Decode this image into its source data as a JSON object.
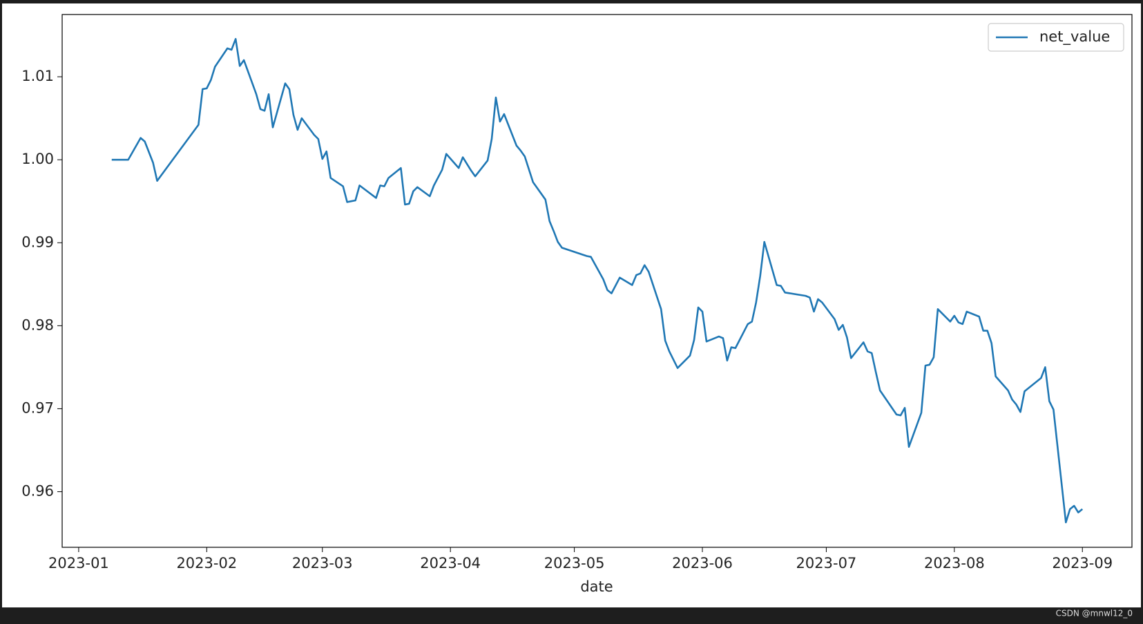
{
  "watermark": "CSDN @mnwl12_0",
  "chart_data": {
    "type": "line",
    "xlabel": "date",
    "x": [
      "2023-01-09",
      "2023-01-13",
      "2023-01-16",
      "2023-01-17",
      "2023-01-19",
      "2023-01-20",
      "2023-01-30",
      "2023-01-31",
      "2023-02-01",
      "2023-02-02",
      "2023-02-03",
      "2023-02-06",
      "2023-02-07",
      "2023-02-08",
      "2023-02-09",
      "2023-02-10",
      "2023-02-13",
      "2023-02-14",
      "2023-02-15",
      "2023-02-16",
      "2023-02-17",
      "2023-02-20",
      "2023-02-21",
      "2023-02-22",
      "2023-02-23",
      "2023-02-24",
      "2023-02-27",
      "2023-02-28",
      "2023-03-01",
      "2023-03-02",
      "2023-03-03",
      "2023-03-06",
      "2023-03-07",
      "2023-03-08",
      "2023-03-09",
      "2023-03-10",
      "2023-03-14",
      "2023-03-15",
      "2023-03-16",
      "2023-03-17",
      "2023-03-20",
      "2023-03-21",
      "2023-03-22",
      "2023-03-23",
      "2023-03-24",
      "2023-03-27",
      "2023-03-28",
      "2023-03-30",
      "2023-03-31",
      "2023-04-03",
      "2023-04-04",
      "2023-04-06",
      "2023-04-07",
      "2023-04-10",
      "2023-04-11",
      "2023-04-12",
      "2023-04-13",
      "2023-04-14",
      "2023-04-17",
      "2023-04-18",
      "2023-04-19",
      "2023-04-21",
      "2023-04-24",
      "2023-04-25",
      "2023-04-26",
      "2023-04-27",
      "2023-04-28",
      "2023-05-04",
      "2023-05-05",
      "2023-05-08",
      "2023-05-09",
      "2023-05-10",
      "2023-05-12",
      "2023-05-15",
      "2023-05-16",
      "2023-05-17",
      "2023-05-18",
      "2023-05-19",
      "2023-05-22",
      "2023-05-23",
      "2023-05-24",
      "2023-05-26",
      "2023-05-29",
      "2023-05-30",
      "2023-05-31",
      "2023-06-01",
      "2023-06-02",
      "2023-06-05",
      "2023-06-06",
      "2023-06-07",
      "2023-06-08",
      "2023-06-09",
      "2023-06-12",
      "2023-06-13",
      "2023-06-14",
      "2023-06-15",
      "2023-06-16",
      "2023-06-19",
      "2023-06-20",
      "2023-06-21",
      "2023-06-26",
      "2023-06-27",
      "2023-06-28",
      "2023-06-29",
      "2023-06-30",
      "2023-07-03",
      "2023-07-04",
      "2023-07-05",
      "2023-07-06",
      "2023-07-07",
      "2023-07-10",
      "2023-07-11",
      "2023-07-12",
      "2023-07-13",
      "2023-07-14",
      "2023-07-18",
      "2023-07-19",
      "2023-07-20",
      "2023-07-21",
      "2023-07-24",
      "2023-07-25",
      "2023-07-26",
      "2023-07-27",
      "2023-07-28",
      "2023-07-31",
      "2023-08-01",
      "2023-08-02",
      "2023-08-03",
      "2023-08-04",
      "2023-08-07",
      "2023-08-08",
      "2023-08-09",
      "2023-08-10",
      "2023-08-11",
      "2023-08-14",
      "2023-08-15",
      "2023-08-16",
      "2023-08-17",
      "2023-08-18",
      "2023-08-22",
      "2023-08-23",
      "2023-08-24",
      "2023-08-25",
      "2023-08-28",
      "2023-08-29",
      "2023-08-30",
      "2023-08-31",
      "2023-09-01"
    ],
    "series": [
      {
        "name": "net_value",
        "color": "#1f77b4",
        "values": [
          1.0,
          1.0,
          1.00263,
          1.0022,
          0.99965,
          0.99746,
          1.00421,
          1.00851,
          1.0086,
          1.0096,
          1.0112,
          1.01342,
          1.01325,
          1.01456,
          1.0113,
          1.012,
          1.0079,
          1.0061,
          1.0059,
          1.0079,
          1.0039,
          1.0092,
          1.0085,
          1.0054,
          1.0036,
          1.005,
          1.003,
          1.0025,
          1.0001,
          1.001,
          0.9978,
          0.9968,
          0.9949,
          0.995,
          0.9951,
          0.9969,
          0.9954,
          0.9969,
          0.9968,
          0.9978,
          0.999,
          0.9946,
          0.9947,
          0.9962,
          0.9967,
          0.9956,
          0.9969,
          0.9988,
          1.0007,
          0.999,
          1.0003,
          0.9987,
          0.998,
          0.9999,
          1.0025,
          1.0075,
          1.0046,
          1.0055,
          1.0017,
          1.0011,
          1.0004,
          0.9973,
          0.9952,
          0.9926,
          0.9914,
          0.9901,
          0.9894,
          0.9884,
          0.9883,
          0.9856,
          0.9843,
          0.9839,
          0.9858,
          0.9849,
          0.9861,
          0.9863,
          0.9873,
          0.9865,
          0.982,
          0.9782,
          0.9769,
          0.9749,
          0.9764,
          0.9783,
          0.9822,
          0.9817,
          0.9781,
          0.9787,
          0.9785,
          0.9758,
          0.9774,
          0.9773,
          0.9802,
          0.9805,
          0.9828,
          0.986,
          0.9901,
          0.9849,
          0.9848,
          0.984,
          0.9836,
          0.9834,
          0.9817,
          0.9832,
          0.9828,
          0.9808,
          0.9795,
          0.9801,
          0.9786,
          0.9761,
          0.978,
          0.9769,
          0.9767,
          0.9744,
          0.9722,
          0.9693,
          0.9692,
          0.9701,
          0.9654,
          0.9695,
          0.9752,
          0.9753,
          0.9762,
          0.982,
          0.9805,
          0.9812,
          0.9804,
          0.9802,
          0.9817,
          0.9811,
          0.9794,
          0.9794,
          0.9779,
          0.9739,
          0.9722,
          0.9711,
          0.9705,
          0.9696,
          0.9721,
          0.9737,
          0.975,
          0.9709,
          0.9699,
          0.9563,
          0.9579,
          0.9583,
          0.9575,
          0.9579
        ]
      }
    ],
    "xlim": [
      "2022-12-28",
      "2023-09-13"
    ],
    "xticks": [
      {
        "value": "2023-01-01",
        "label": "2023-01"
      },
      {
        "value": "2023-02-01",
        "label": "2023-02"
      },
      {
        "value": "2023-03-01",
        "label": "2023-03"
      },
      {
        "value": "2023-04-01",
        "label": "2023-04"
      },
      {
        "value": "2023-05-01",
        "label": "2023-05"
      },
      {
        "value": "2023-06-01",
        "label": "2023-06"
      },
      {
        "value": "2023-07-01",
        "label": "2023-07"
      },
      {
        "value": "2023-08-01",
        "label": "2023-08"
      },
      {
        "value": "2023-09-01",
        "label": "2023-09"
      }
    ],
    "ylim": [
      0.9533,
      1.0175
    ],
    "yticks": [
      0.96,
      0.97,
      0.98,
      0.99,
      {
        "value": 1,
        "label": "1.00"
      },
      1.01
    ],
    "grid": false,
    "legend": "upper right"
  }
}
